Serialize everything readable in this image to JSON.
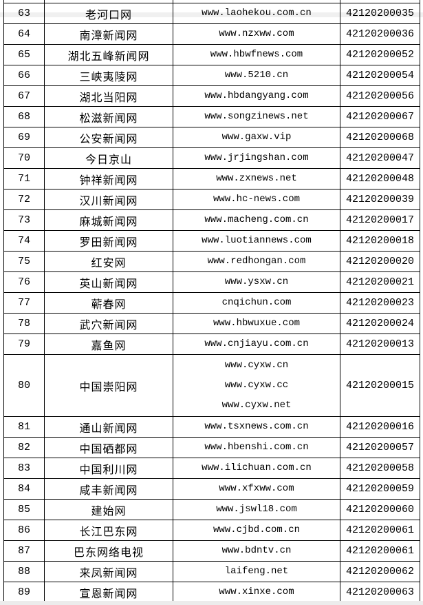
{
  "page": {
    "background": "#ffffff",
    "table_border_color": "#000000",
    "text_color": "#000000"
  },
  "table": {
    "rows": [
      {
        "no": "63",
        "name": "老河口网",
        "urls": [
          "www.laohekou.com.cn"
        ],
        "code": "42120200035"
      },
      {
        "no": "64",
        "name": "南漳新闻网",
        "urls": [
          "www.nzxww.com"
        ],
        "code": "42120200036"
      },
      {
        "no": "65",
        "name": "湖北五峰新闻网",
        "urls": [
          "www.hbwfnews.com"
        ],
        "code": "42120200052"
      },
      {
        "no": "66",
        "name": "三峡夷陵网",
        "urls": [
          "www.5210.cn"
        ],
        "code": "42120200054"
      },
      {
        "no": "67",
        "name": "湖北当阳网",
        "urls": [
          "www.hbdangyang.com"
        ],
        "code": "42120200056"
      },
      {
        "no": "68",
        "name": "松滋新闻网",
        "urls": [
          "www.songzinews.net"
        ],
        "code": "42120200067"
      },
      {
        "no": "69",
        "name": "公安新闻网",
        "urls": [
          "www.gaxw.vip"
        ],
        "code": "42120200068"
      },
      {
        "no": "70",
        "name": "今日京山",
        "urls": [
          "www.jrjingshan.com"
        ],
        "code": "42120200047"
      },
      {
        "no": "71",
        "name": "钟祥新闻网",
        "urls": [
          "www.zxnews.net"
        ],
        "code": "42120200048"
      },
      {
        "no": "72",
        "name": "汉川新闻网",
        "urls": [
          "www.hc-news.com"
        ],
        "code": "42120200039"
      },
      {
        "no": "73",
        "name": "麻城新闻网",
        "urls": [
          "www.macheng.com.cn"
        ],
        "code": "42120200017"
      },
      {
        "no": "74",
        "name": "罗田新闻网",
        "urls": [
          "www.luotiannews.com"
        ],
        "code": "42120200018"
      },
      {
        "no": "75",
        "name": "红安网",
        "urls": [
          "www.redhongan.com"
        ],
        "code": "42120200020"
      },
      {
        "no": "76",
        "name": "英山新闻网",
        "urls": [
          "www.ysxw.cn"
        ],
        "code": "42120200021"
      },
      {
        "no": "77",
        "name": "蕲春网",
        "urls": [
          "cnqichun.com"
        ],
        "code": "42120200023"
      },
      {
        "no": "78",
        "name": "武穴新闻网",
        "urls": [
          "www.hbwuxue.com"
        ],
        "code": "42120200024"
      },
      {
        "no": "79",
        "name": "嘉鱼网",
        "urls": [
          "www.cnjiayu.com.cn"
        ],
        "code": "42120200013"
      },
      {
        "no": "80",
        "name": "中国崇阳网",
        "urls": [
          "www.cyxw.cn",
          "www.cyxw.cc",
          "www.cyxw.net"
        ],
        "code": "42120200015"
      },
      {
        "no": "81",
        "name": "通山新闻网",
        "urls": [
          "www.tsxnews.com.cn"
        ],
        "code": "42120200016"
      },
      {
        "no": "82",
        "name": "中国硒都网",
        "urls": [
          "www.hbenshi.com.cn"
        ],
        "code": "42120200057"
      },
      {
        "no": "83",
        "name": "中国利川网",
        "urls": [
          "www.ilichuan.com.cn"
        ],
        "code": "42120200058"
      },
      {
        "no": "84",
        "name": "咸丰新闻网",
        "urls": [
          "www.xfxww.com"
        ],
        "code": "42120200059"
      },
      {
        "no": "85",
        "name": "建始网",
        "urls": [
          "www.jswl18.com"
        ],
        "code": "42120200060"
      },
      {
        "no": "86",
        "name": "长江巴东网",
        "urls": [
          "www.cjbd.com.cn"
        ],
        "code": "42120200061"
      },
      {
        "no": "87",
        "name": "巴东网络电视",
        "urls": [
          "www.bdntv.cn"
        ],
        "code": "42120200061"
      },
      {
        "no": "88",
        "name": "来凤新闻网",
        "urls": [
          "laifeng.net"
        ],
        "code": "42120200062"
      },
      {
        "no": "89",
        "name": "宣恩新闻网",
        "urls": [
          "www.xinxe.com"
        ],
        "code": "42120200063"
      }
    ]
  }
}
